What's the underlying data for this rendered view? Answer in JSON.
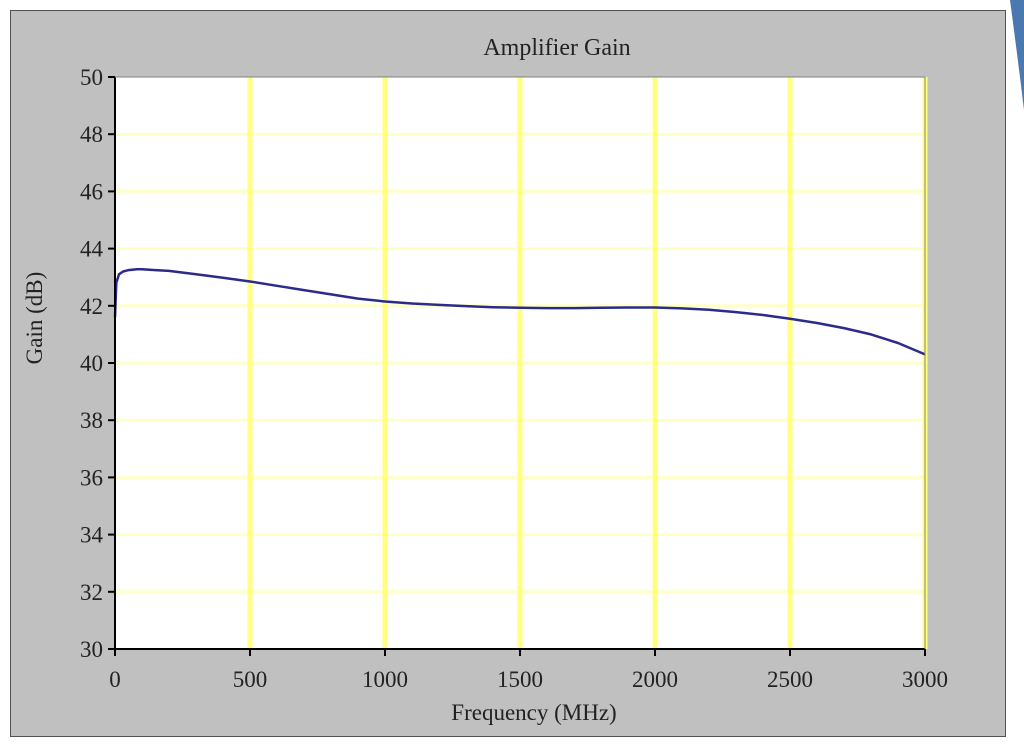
{
  "chart_data": {
    "type": "line",
    "title": "Amplifier Gain",
    "xlabel": "Frequency (MHz)",
    "ylabel": "Gain (dB)",
    "xlim": [
      0,
      3000
    ],
    "ylim": [
      30,
      50
    ],
    "xticks": [
      0,
      500,
      1000,
      1500,
      2000,
      2500,
      3000
    ],
    "yticks": [
      30,
      32,
      34,
      36,
      38,
      40,
      42,
      44,
      46,
      48,
      50
    ],
    "grid": true,
    "legend": "none",
    "colors": {
      "frame": "#c0c0c0",
      "plot_background": "#ffffff",
      "vertical_grid": "#ffff80",
      "horizontal_grid": "#ffffc8",
      "line": "#2b2b8c",
      "axis": "#000000"
    },
    "series": [
      {
        "x": [
          0,
          5,
          15,
          30,
          50,
          80,
          100,
          150,
          200,
          300,
          400,
          500,
          600,
          700,
          800,
          900,
          1000,
          1100,
          1200,
          1300,
          1400,
          1500,
          1600,
          1700,
          1800,
          1900,
          2000,
          2100,
          2200,
          2300,
          2400,
          2500,
          2600,
          2700,
          2800,
          2900,
          3000
        ],
        "y": [
          41.6,
          42.8,
          43.1,
          43.2,
          43.25,
          43.28,
          43.28,
          43.25,
          43.22,
          43.1,
          42.98,
          42.85,
          42.7,
          42.55,
          42.4,
          42.25,
          42.15,
          42.08,
          42.03,
          41.99,
          41.95,
          41.93,
          41.92,
          41.92,
          41.93,
          41.94,
          41.94,
          41.91,
          41.86,
          41.78,
          41.68,
          41.55,
          41.4,
          41.22,
          41.0,
          40.7,
          40.3
        ]
      }
    ]
  }
}
